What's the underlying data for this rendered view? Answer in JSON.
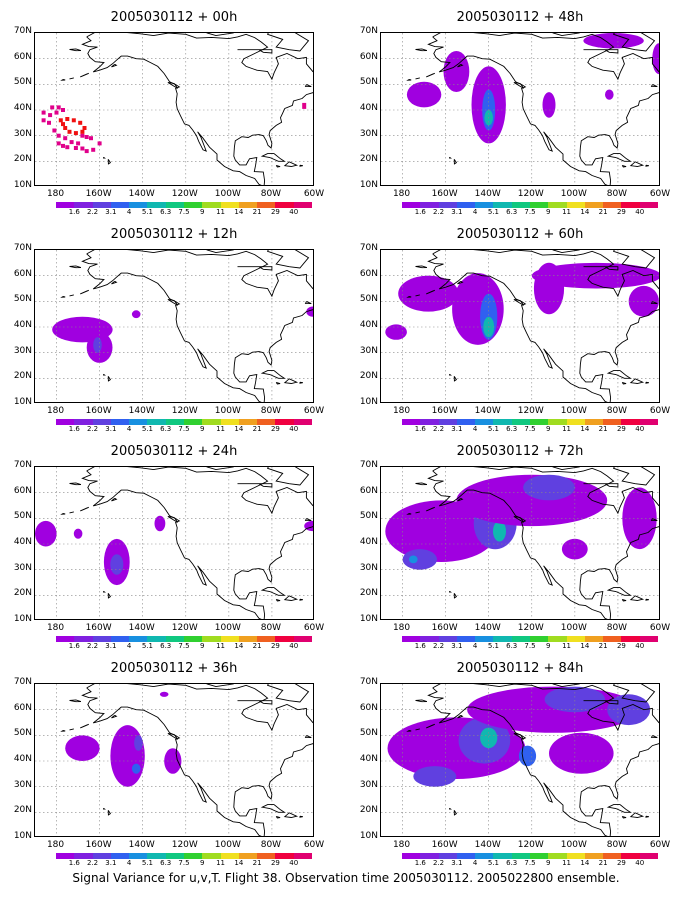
{
  "caption": "Signal Variance for u,v,T. Flight 38. Observation time 2005030112. 2005022800 ensemble.",
  "y_labels": [
    "70N",
    "60N",
    "50N",
    "40N",
    "30N",
    "20N",
    "10N"
  ],
  "x_labels": [
    "180",
    "160W",
    "140W",
    "120W",
    "100W",
    "80W",
    "60W"
  ],
  "colorbar": {
    "labels": [
      "1.6",
      "2.2",
      "3.1",
      "4",
      "5.1",
      "6.3",
      "7.5",
      "9",
      "11",
      "14",
      "21",
      "29",
      "40"
    ],
    "colors": [
      "#a000e0",
      "#8020e0",
      "#6040e0",
      "#3060f0",
      "#1890e0",
      "#10b8b0",
      "#10c880",
      "#30d030",
      "#a0dc20",
      "#f0e020",
      "#f0a020",
      "#f06020",
      "#f00040",
      "#e00070"
    ]
  },
  "panels": [
    {
      "title": "2005030112 + 00h",
      "blobs": []
    },
    {
      "title": "2005030112 + 12h",
      "blobs": [
        {
          "lon": -168,
          "lat": 39,
          "rx": 14,
          "ry": 5,
          "level": 0
        },
        {
          "lon": -160,
          "lat": 32,
          "rx": 6,
          "ry": 6,
          "level": 0
        },
        {
          "lon": -161,
          "lat": 33,
          "rx": 2,
          "ry": 3,
          "level": 2
        },
        {
          "lon": -143,
          "lat": 45,
          "rx": 2,
          "ry": 1.5,
          "level": 0
        },
        {
          "lon": -61,
          "lat": 46,
          "rx": 3,
          "ry": 2,
          "level": 0
        }
      ]
    },
    {
      "title": "2005030112 + 24h",
      "blobs": [
        {
          "lon": -185,
          "lat": 44,
          "rx": 5,
          "ry": 5,
          "level": 0
        },
        {
          "lon": -170,
          "lat": 44,
          "rx": 2,
          "ry": 2,
          "level": 0
        },
        {
          "lon": -152,
          "lat": 33,
          "rx": 6,
          "ry": 9,
          "level": 0
        },
        {
          "lon": -152,
          "lat": 32,
          "rx": 3,
          "ry": 4,
          "level": 2
        },
        {
          "lon": -132,
          "lat": 48,
          "rx": 2.5,
          "ry": 3,
          "level": 0
        },
        {
          "lon": -61,
          "lat": 47,
          "rx": 4,
          "ry": 2,
          "level": 0
        }
      ]
    },
    {
      "title": "2005030112 + 36h",
      "blobs": [
        {
          "lon": -168,
          "lat": 45,
          "rx": 8,
          "ry": 5,
          "level": 0
        },
        {
          "lon": -147,
          "lat": 42,
          "rx": 8,
          "ry": 12,
          "level": 0
        },
        {
          "lon": -143,
          "lat": 37,
          "rx": 2,
          "ry": 2,
          "level": 3
        },
        {
          "lon": -142,
          "lat": 47,
          "rx": 2,
          "ry": 3,
          "level": 2
        },
        {
          "lon": -126,
          "lat": 40,
          "rx": 4,
          "ry": 5,
          "level": 0
        },
        {
          "lon": -130,
          "lat": 66,
          "rx": 2,
          "ry": 1,
          "level": 0
        }
      ]
    },
    {
      "title": "2005030112 + 48h",
      "blobs": [
        {
          "lon": -170,
          "lat": 46,
          "rx": 8,
          "ry": 5,
          "level": 0
        },
        {
          "lon": -155,
          "lat": 55,
          "rx": 6,
          "ry": 8,
          "level": 0
        },
        {
          "lon": -140,
          "lat": 42,
          "rx": 8,
          "ry": 15,
          "level": 0
        },
        {
          "lon": -140,
          "lat": 40,
          "rx": 3,
          "ry": 8,
          "level": 3
        },
        {
          "lon": -140,
          "lat": 37,
          "rx": 2,
          "ry": 3,
          "level": 5
        },
        {
          "lon": -112,
          "lat": 42,
          "rx": 3,
          "ry": 5,
          "level": 0
        },
        {
          "lon": -82,
          "lat": 67,
          "rx": 14,
          "ry": 3,
          "level": 0
        },
        {
          "lon": -61,
          "lat": 60,
          "rx": 3,
          "ry": 6,
          "level": 0
        },
        {
          "lon": -84,
          "lat": 46,
          "rx": 2,
          "ry": 2,
          "level": 0
        }
      ]
    },
    {
      "title": "2005030112 + 60h",
      "blobs": [
        {
          "lon": -168,
          "lat": 53,
          "rx": 14,
          "ry": 7,
          "level": 0
        },
        {
          "lon": -145,
          "lat": 47,
          "rx": 12,
          "ry": 14,
          "level": 0
        },
        {
          "lon": -140,
          "lat": 44,
          "rx": 4,
          "ry": 9,
          "level": 3
        },
        {
          "lon": -140,
          "lat": 40,
          "rx": 2.5,
          "ry": 4,
          "level": 5
        },
        {
          "lon": -183,
          "lat": 38,
          "rx": 5,
          "ry": 3,
          "level": 0
        },
        {
          "lon": -112,
          "lat": 55,
          "rx": 7,
          "ry": 10,
          "level": 0
        },
        {
          "lon": -90,
          "lat": 60,
          "rx": 30,
          "ry": 5,
          "level": 0
        },
        {
          "lon": -68,
          "lat": 50,
          "rx": 7,
          "ry": 6,
          "level": 0
        }
      ]
    },
    {
      "title": "2005030112 + 72h",
      "blobs": [
        {
          "lon": -162,
          "lat": 45,
          "rx": 26,
          "ry": 12,
          "level": 0
        },
        {
          "lon": -172,
          "lat": 34,
          "rx": 8,
          "ry": 4,
          "level": 2
        },
        {
          "lon": -175,
          "lat": 34,
          "rx": 2,
          "ry": 1.5,
          "level": 4
        },
        {
          "lon": -137,
          "lat": 48,
          "rx": 10,
          "ry": 10,
          "level": 2
        },
        {
          "lon": -135,
          "lat": 45,
          "rx": 3,
          "ry": 4,
          "level": 5
        },
        {
          "lon": -120,
          "lat": 57,
          "rx": 35,
          "ry": 10,
          "level": 0
        },
        {
          "lon": -112,
          "lat": 62,
          "rx": 12,
          "ry": 5,
          "level": 2
        },
        {
          "lon": -70,
          "lat": 50,
          "rx": 8,
          "ry": 12,
          "level": 0
        },
        {
          "lon": -100,
          "lat": 38,
          "rx": 6,
          "ry": 4,
          "level": 0
        }
      ]
    },
    {
      "title": "2005030112 + 84h",
      "blobs": [
        {
          "lon": -155,
          "lat": 45,
          "rx": 32,
          "ry": 12,
          "level": 0
        },
        {
          "lon": -142,
          "lat": 48,
          "rx": 12,
          "ry": 9,
          "level": 2
        },
        {
          "lon": -140,
          "lat": 49,
          "rx": 4,
          "ry": 4,
          "level": 5
        },
        {
          "lon": -165,
          "lat": 34,
          "rx": 10,
          "ry": 4,
          "level": 2
        },
        {
          "lon": -110,
          "lat": 60,
          "rx": 40,
          "ry": 9,
          "level": 0
        },
        {
          "lon": -100,
          "lat": 64,
          "rx": 14,
          "ry": 5,
          "level": 2
        },
        {
          "lon": -97,
          "lat": 43,
          "rx": 15,
          "ry": 8,
          "level": 0
        },
        {
          "lon": -122,
          "lat": 42,
          "rx": 4,
          "ry": 4,
          "level": 3
        },
        {
          "lon": -75,
          "lat": 60,
          "rx": 10,
          "ry": 6,
          "level": 2
        }
      ]
    }
  ]
}
